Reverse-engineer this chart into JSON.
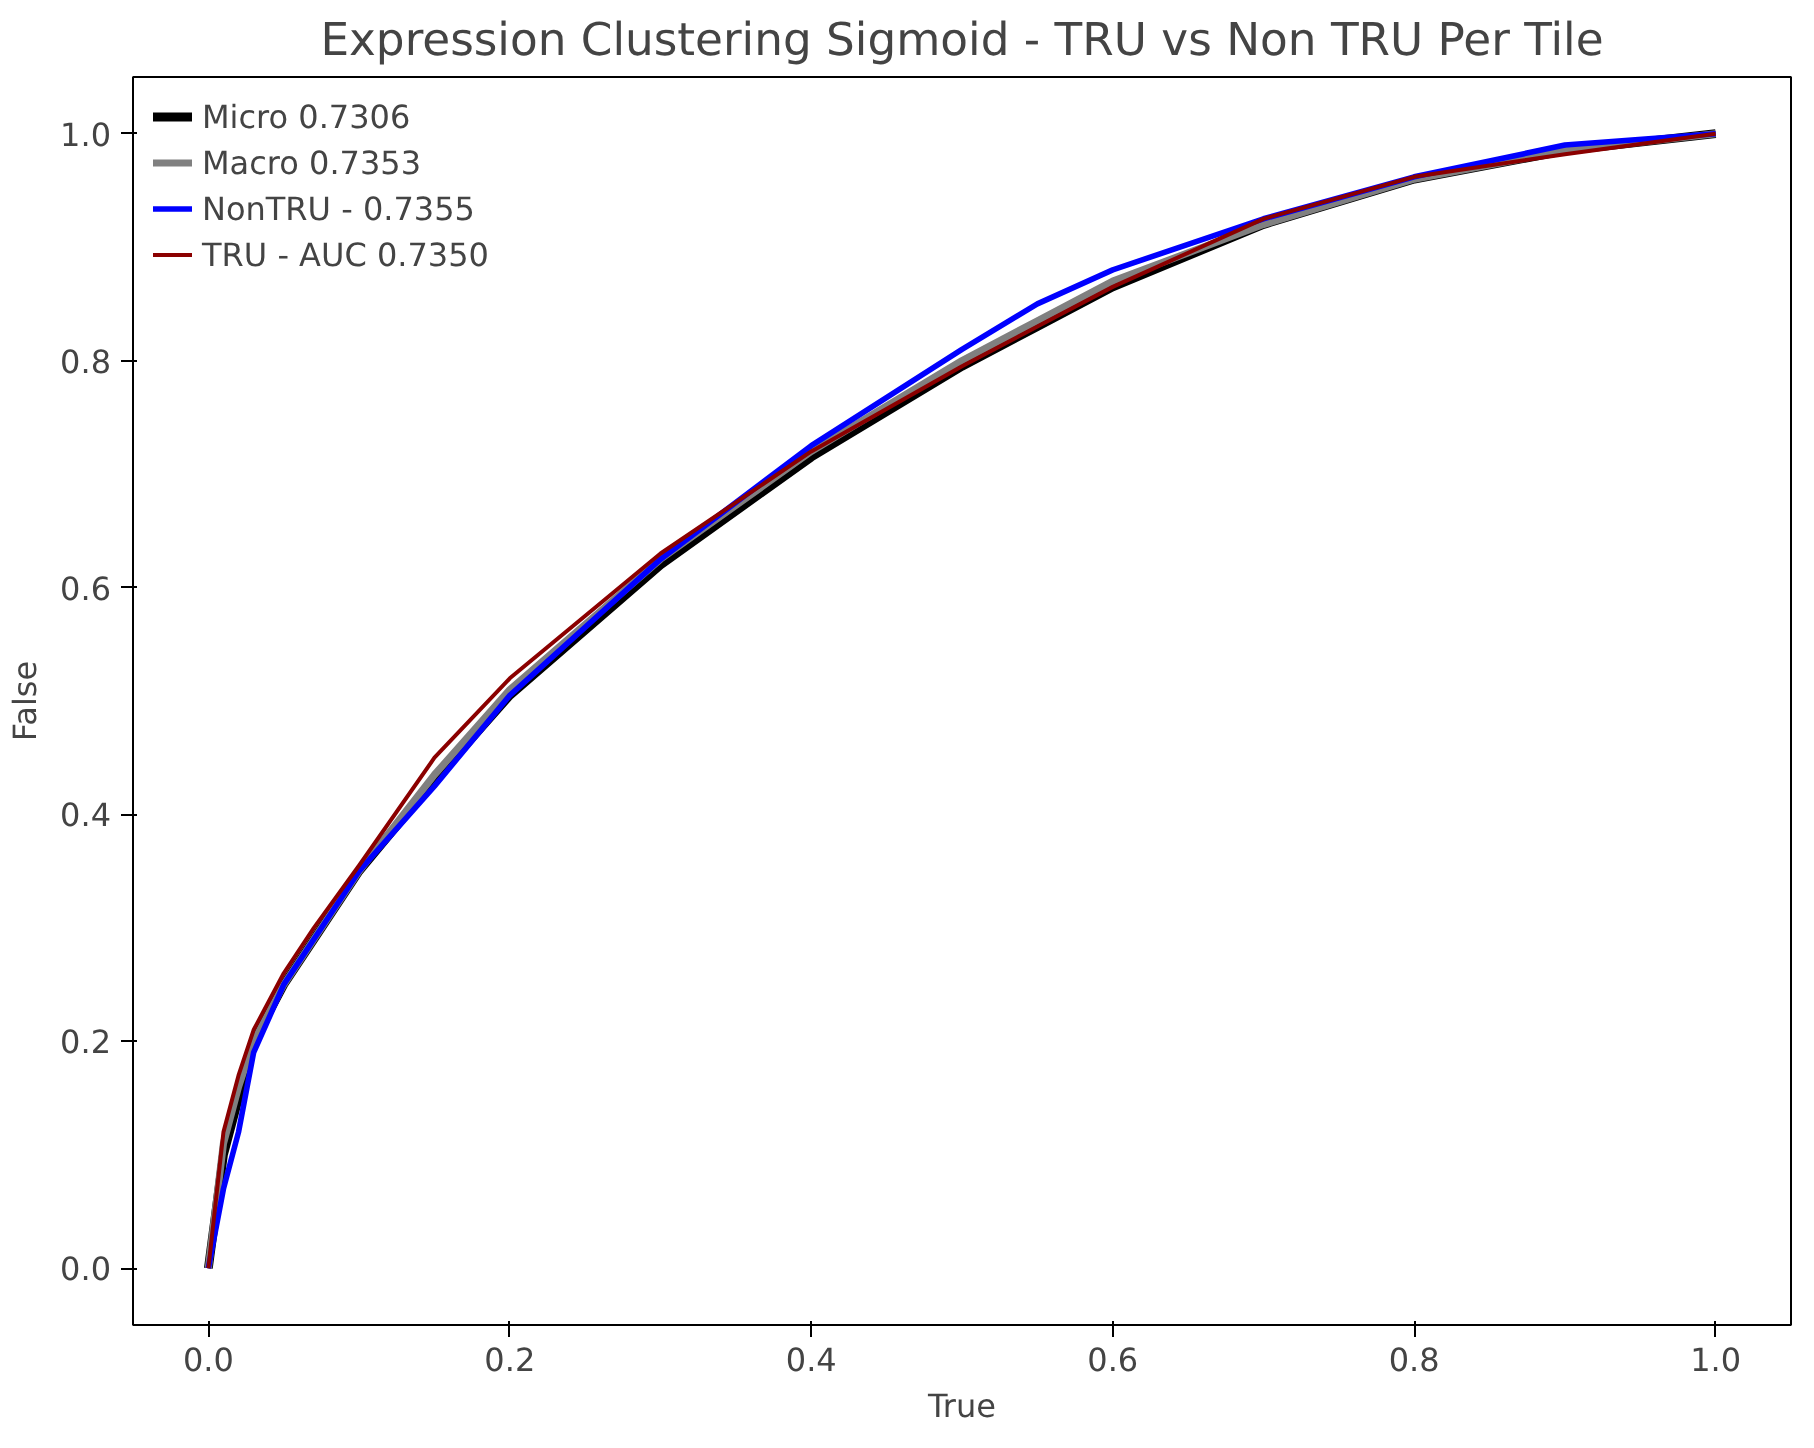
{
  "chart_data": {
    "type": "line",
    "title": "Expression Clustering Sigmoid - TRU vs Non TRU Per Tile",
    "xlabel": "True",
    "ylabel": "False",
    "xlim": [
      -0.05,
      1.05
    ],
    "ylim": [
      -0.05,
      1.05
    ],
    "xticks": [
      {
        "value": 0,
        "label": "0.0"
      },
      {
        "value": 0.2,
        "label": "0.2"
      },
      {
        "value": 0.4,
        "label": "0.4"
      },
      {
        "value": 0.6,
        "label": "0.6"
      },
      {
        "value": 0.8,
        "label": "0.8"
      },
      {
        "value": 1,
        "label": "1.0"
      }
    ],
    "yticks": [
      {
        "value": 0,
        "label": "0.0"
      },
      {
        "value": 0.2,
        "label": "0.2"
      },
      {
        "value": 0.4,
        "label": "0.4"
      },
      {
        "value": 0.6,
        "label": "0.6"
      },
      {
        "value": 0.8,
        "label": "0.8"
      },
      {
        "value": 1,
        "label": "1.0"
      }
    ],
    "grid": false,
    "legend": "top left",
    "line_style": "solid",
    "marker": "none",
    "x": [
      0,
      0.01,
      0.02,
      0.03,
      0.05,
      0.07,
      0.1,
      0.15,
      0.2,
      0.3,
      0.4,
      0.5,
      0.55,
      0.6,
      0.7,
      0.8,
      0.9,
      1.0
    ],
    "series": [
      {
        "name": "Micro 0.7306",
        "color": "#000000",
        "values": [
          0,
          0.1,
          0.15,
          0.2,
          0.25,
          0.29,
          0.35,
          0.43,
          0.505,
          0.62,
          0.715,
          0.795,
          0.83,
          0.865,
          0.92,
          0.96,
          0.985,
          1.0
        ]
      },
      {
        "name": "Macro 0.7353",
        "color": "#808080",
        "values": [
          0,
          0.11,
          0.16,
          0.2,
          0.25,
          0.29,
          0.35,
          0.435,
          0.51,
          0.625,
          0.72,
          0.8,
          0.835,
          0.87,
          0.92,
          0.96,
          0.985,
          1.0
        ]
      },
      {
        "name": "NonTRU - 0.7355",
        "color": "#0000ff",
        "values": [
          0,
          0.07,
          0.12,
          0.19,
          0.25,
          0.29,
          0.35,
          0.425,
          0.505,
          0.625,
          0.725,
          0.81,
          0.85,
          0.88,
          0.925,
          0.962,
          0.99,
          1.0
        ]
      },
      {
        "name": "TRU - AUC 0.7350",
        "color": "#8b0000",
        "values": [
          0,
          0.12,
          0.17,
          0.21,
          0.26,
          0.3,
          0.355,
          0.45,
          0.52,
          0.63,
          0.72,
          0.795,
          0.83,
          0.865,
          0.925,
          0.962,
          0.982,
          1.0
        ]
      }
    ]
  }
}
